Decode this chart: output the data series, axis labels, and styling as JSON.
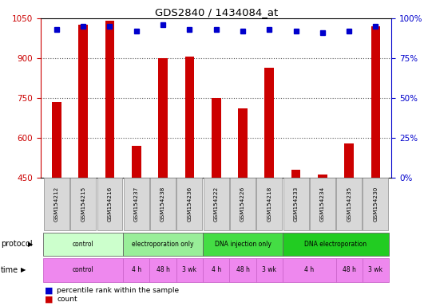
{
  "title": "GDS2840 / 1434084_at",
  "samples": [
    "GSM154212",
    "GSM154215",
    "GSM154216",
    "GSM154237",
    "GSM154238",
    "GSM154236",
    "GSM154222",
    "GSM154226",
    "GSM154218",
    "GSM154233",
    "GSM154234",
    "GSM154235",
    "GSM154230"
  ],
  "counts": [
    735,
    1025,
    1040,
    568,
    900,
    905,
    750,
    710,
    865,
    480,
    460,
    578,
    1020
  ],
  "percentile_ranks": [
    93,
    95,
    95,
    92,
    96,
    93,
    93,
    92,
    93,
    92,
    91,
    92,
    95
  ],
  "ymin": 450,
  "ymax": 1050,
  "yticks": [
    450,
    600,
    750,
    900,
    1050
  ],
  "y2ticks": [
    0,
    25,
    50,
    75,
    100
  ],
  "bar_color": "#cc0000",
  "dot_color": "#0000cc",
  "protocol_groups": [
    {
      "label": "control",
      "start": 0,
      "end": 3,
      "color": "#ccffcc"
    },
    {
      "label": "electroporation only",
      "start": 3,
      "end": 6,
      "color": "#99ee99"
    },
    {
      "label": "DNA injection only",
      "start": 6,
      "end": 9,
      "color": "#44dd44"
    },
    {
      "label": "DNA electroporation",
      "start": 9,
      "end": 13,
      "color": "#22cc22"
    }
  ],
  "time_groups": [
    {
      "label": "control",
      "start": 0,
      "end": 3
    },
    {
      "label": "4 h",
      "start": 3,
      "end": 4
    },
    {
      "label": "48 h",
      "start": 4,
      "end": 5
    },
    {
      "label": "3 wk",
      "start": 5,
      "end": 6
    },
    {
      "label": "4 h",
      "start": 6,
      "end": 7
    },
    {
      "label": "48 h",
      "start": 7,
      "end": 8
    },
    {
      "label": "3 wk",
      "start": 8,
      "end": 9
    },
    {
      "label": "4 h",
      "start": 9,
      "end": 11
    },
    {
      "label": "48 h",
      "start": 11,
      "end": 12
    },
    {
      "label": "3 wk",
      "start": 12,
      "end": 13
    }
  ],
  "time_color": "#ee88ee",
  "bg_color": "#ffffff",
  "grid_color": "#555555",
  "tick_label_color_left": "#cc0000",
  "tick_label_color_right": "#0000cc",
  "sample_box_color": "#d8d8d8",
  "sample_box_edge": "#999999"
}
